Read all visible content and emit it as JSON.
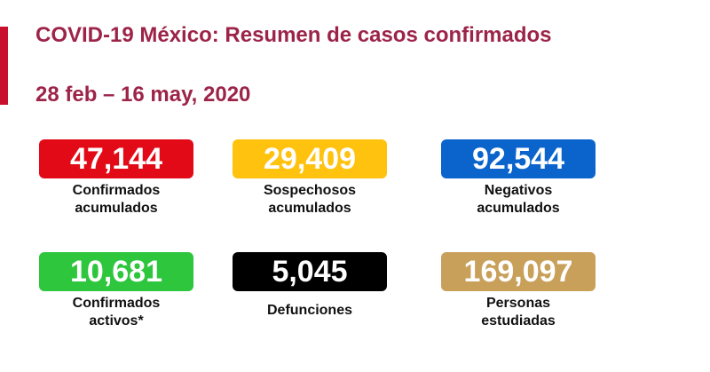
{
  "header": {
    "title": "COVID-19 México: Resumen de casos confirmados",
    "date": "28 feb – 16 may, 2020"
  },
  "cards": [
    {
      "value": "47,144",
      "label_lines": [
        "Confirmados",
        "acumulados"
      ],
      "color": "#e20a17"
    },
    {
      "value": "29,409",
      "label_lines": [
        "Sospechosos",
        "acumulados"
      ],
      "color": "#ffc20e"
    },
    {
      "value": "92,544",
      "label_lines": [
        "Negativos",
        "acumulados"
      ],
      "color": "#0b64cc"
    },
    {
      "value": "10,681",
      "label_lines": [
        "Confirmados",
        "activos*"
      ],
      "color": "#2dc63d"
    },
    {
      "value": "5,045",
      "label_lines": [
        "Defunciones"
      ],
      "color": "#000000"
    },
    {
      "value": "169,097",
      "label_lines": [
        "Personas",
        "estudiadas"
      ],
      "color": "#c9a05a"
    }
  ]
}
